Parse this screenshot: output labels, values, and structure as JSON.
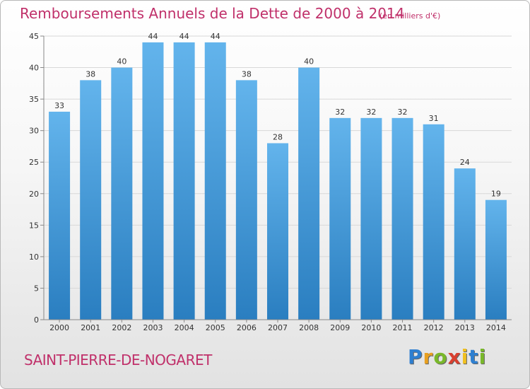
{
  "header": {
    "title": "Remboursements Annuels de la Dette de 2000 à 2014",
    "subtitle": "(en milliers d'€)"
  },
  "footer": {
    "town": "SAINT-PIERRE-DE-NOGARET",
    "brand_letters": [
      "P",
      "r",
      "o",
      "x",
      "i",
      "t",
      "i"
    ],
    "brand_colors": [
      "#2e7fd0",
      "#e8a020",
      "#79b82a",
      "#d94030",
      "#f0c020",
      "#2e7fd0",
      "#79b82a"
    ]
  },
  "colors": {
    "bar_top": "#63b4ec",
    "bar_bottom": "#2a7ec0",
    "grid": "#d8d8d8",
    "axis": "#888888",
    "text": "#333333",
    "accent": "#c0306a"
  },
  "chart_data": {
    "type": "bar",
    "title": "Remboursements Annuels de la Dette de 2000 à 2014",
    "ylabel": "",
    "xlabel": "",
    "categories": [
      "2000",
      "2001",
      "2002",
      "2003",
      "2004",
      "2005",
      "2006",
      "2007",
      "2008",
      "2009",
      "2010",
      "2011",
      "2012",
      "2013",
      "2014"
    ],
    "values": [
      33,
      38,
      40,
      44,
      44,
      44,
      38,
      28,
      40,
      32,
      32,
      32,
      31,
      24,
      19
    ],
    "data_labels": [
      "33",
      "38",
      "40",
      "44",
      "44",
      "44",
      "38",
      "28",
      "40",
      "32",
      "32",
      "32",
      "31",
      "24",
      "19"
    ],
    "ylim": [
      0,
      45
    ],
    "yticks": [
      0,
      5,
      10,
      15,
      20,
      25,
      30,
      35,
      40,
      45
    ],
    "ytick_labels": [
      "0",
      "5",
      "10",
      "15",
      "20",
      "25",
      "30",
      "35",
      "40",
      "45"
    ],
    "grid": true
  }
}
